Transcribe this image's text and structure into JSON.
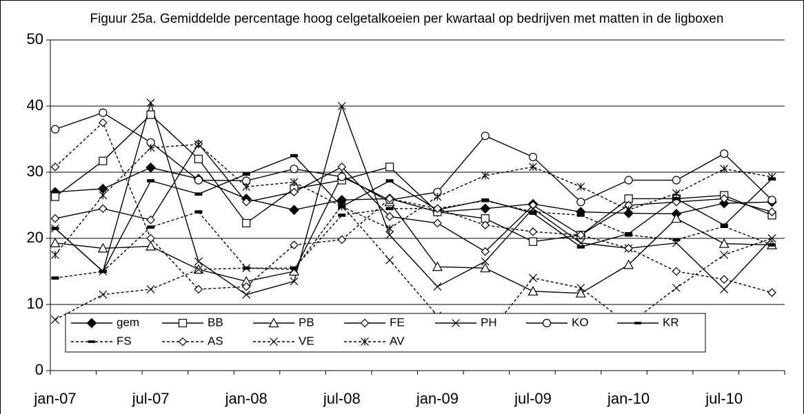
{
  "chart_data": {
    "type": "line",
    "title": "Figuur 25a. Gemiddelde percentage hoog celgetalkoeien per kwartaal op bedrijven met matten in de ligboxen",
    "categories": [
      "jan-07",
      null,
      "jul-07",
      null,
      "jan-08",
      null,
      "jul-08",
      null,
      "jan-09",
      null,
      "jul-09",
      null,
      "jan-10",
      null,
      "jul-10",
      null
    ],
    "ylim": [
      0,
      50
    ],
    "yticks": [
      0,
      10,
      20,
      30,
      40,
      50
    ],
    "grid": true,
    "series": [
      {
        "name": "gem",
        "color": "#000000",
        "marker": "diamond-filled",
        "line_style": "solid",
        "values": [
          27,
          27.5,
          30.7,
          29,
          26,
          24.3,
          25.8,
          26,
          24,
          24.5,
          25.2,
          24,
          23.8,
          23.7,
          25.3,
          25.5
        ]
      },
      {
        "name": "BB",
        "color": "#000000",
        "marker": "square",
        "line_style": "solid",
        "values": [
          26.3,
          31.7,
          38.7,
          32,
          22.3,
          27.5,
          28.8,
          30.8,
          24,
          23,
          19.5,
          20.5,
          26,
          26,
          26.5,
          23.5
        ]
      },
      {
        "name": "PB",
        "color": "#000000",
        "marker": "triangle",
        "line_style": "solid",
        "values": [
          19.3,
          18.5,
          18.8,
          15.3,
          13.5,
          15,
          29.5,
          25.5,
          15.7,
          15.5,
          12,
          11.7,
          16,
          23,
          19.2,
          19
        ]
      },
      {
        "name": "FE",
        "color": "#000000",
        "marker": "diamond",
        "line_style": "solid",
        "values": [
          23,
          24.5,
          22.8,
          34.3,
          25.5,
          27,
          30.8,
          23.3,
          22.3,
          18,
          25,
          20.5,
          25,
          25.5,
          26,
          24
        ]
      },
      {
        "name": "PH",
        "color": "#000000",
        "marker": "x",
        "line_style": "solid",
        "values": [
          21.5,
          15,
          40.5,
          16.5,
          11.5,
          13.5,
          40,
          20.5,
          12.7,
          16.5,
          24.5,
          19.3,
          18.5,
          19.3,
          12.3,
          20
        ]
      },
      {
        "name": "KO",
        "color": "#000000",
        "marker": "circle",
        "line_style": "solid",
        "values": [
          36.5,
          39,
          34.5,
          28.8,
          28.7,
          30.5,
          29.3,
          25.8,
          27,
          35.5,
          32.3,
          25.5,
          28.8,
          28.8,
          32.8,
          25.8
        ]
      },
      {
        "name": "KR",
        "color": "#000000",
        "marker": "dash",
        "line_style": "solid",
        "values": [
          21.5,
          15,
          28.7,
          26.7,
          29.7,
          32.5,
          24.8,
          28.7,
          24.3,
          25.8,
          23.8,
          18.7,
          20.7,
          26,
          22,
          29
        ]
      },
      {
        "name": "FS",
        "color": "#000000",
        "marker": "dash",
        "line_style": "dotted",
        "values": [
          14,
          15,
          21.7,
          24,
          15.5,
          15.5,
          23.5,
          24.5,
          24.5,
          25.7,
          24,
          23.5,
          20.5,
          19.8,
          21.8,
          19
        ]
      },
      {
        "name": "AS",
        "color": "#000000",
        "marker": "diamond",
        "line_style": "dotted",
        "values": [
          30.8,
          37.5,
          20,
          12.3,
          12.7,
          19,
          19.8,
          26,
          24.5,
          22,
          21,
          20.5,
          18.5,
          15,
          13.8,
          11.8
        ]
      },
      {
        "name": "VE",
        "color": "#000000",
        "marker": "x",
        "line_style": "dotted",
        "values": [
          7.7,
          11.5,
          12.3,
          15.3,
          15.5,
          15.3,
          25,
          16.7,
          8.3,
          5,
          14,
          12.5,
          7,
          12.5,
          17.5,
          20
        ]
      },
      {
        "name": "AV",
        "color": "#000000",
        "marker": "asterisk",
        "line_style": "dotted",
        "values": [
          17.5,
          26.5,
          33.7,
          34.2,
          27.8,
          28.5,
          24.8,
          21.5,
          26.3,
          29.5,
          30.8,
          27.8,
          24.3,
          26.8,
          30.5,
          29.3
        ]
      }
    ]
  }
}
